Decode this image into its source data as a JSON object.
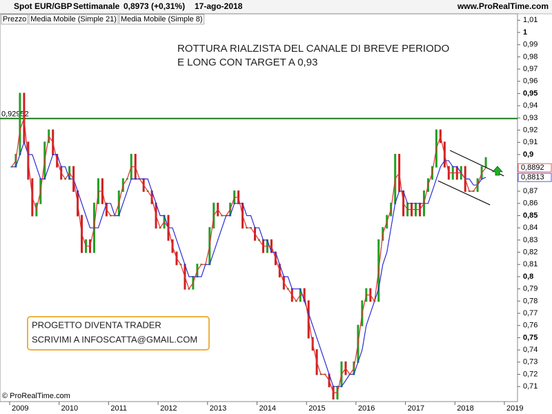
{
  "chart_data": {
    "type": "price_bars",
    "title": "Spot EUR/GBP",
    "timeframe": "Settimanale",
    "last_quote": "0,8973 (+0,31%)",
    "date": "17-ago-2018",
    "source": "www.ProRealTime.com",
    "copyright": "© ProRealTime.com",
    "annotations": [
      "ROTTURA RIALZISTA DEL CANALE DI BREVE PERIODO",
      "E LONG CON TARGET A 0,93"
    ],
    "info_box": [
      "PROGETTO DIVENTA TRADER",
      "SCRIVIMI A INFOSCATTA@GMAIL.COM"
    ],
    "level": {
      "value": 0.92952,
      "label": "0,92952",
      "color": "#1a7a1a"
    },
    "trendlines": [
      {
        "x": [
          2017.9,
          2018.99
        ],
        "y": [
          0.9034,
          0.8825
        ]
      },
      {
        "x": [
          2017.66,
          2018.71
        ],
        "y": [
          0.8785,
          0.8588
        ]
      }
    ],
    "xlim": [
      2008.805,
      2019.265
    ],
    "xticks": [
      2009,
      2010,
      2011,
      2012,
      2013,
      2014,
      2015,
      2016,
      2017,
      2018,
      2019
    ],
    "ylim": [
      0.6977,
      1.0068
    ],
    "yticks": [
      {
        "value": 0.71,
        "label": "0,71"
      },
      {
        "value": 0.72,
        "label": "0,72"
      },
      {
        "value": 0.73,
        "label": "0,73"
      },
      {
        "value": 0.74,
        "label": "0,74"
      },
      {
        "value": 0.75,
        "label": "0,75"
      },
      {
        "value": 0.76,
        "label": "0,76"
      },
      {
        "value": 0.77,
        "label": "0,77"
      },
      {
        "value": 0.78,
        "label": "0,78"
      },
      {
        "value": 0.79,
        "label": "0,79"
      },
      {
        "value": 0.8,
        "label": "0,8"
      },
      {
        "value": 0.81,
        "label": "0,81"
      },
      {
        "value": 0.82,
        "label": "0,82"
      },
      {
        "value": 0.83,
        "label": "0,83"
      },
      {
        "value": 0.84,
        "label": "0,84"
      },
      {
        "value": 0.85,
        "label": "0,85"
      },
      {
        "value": 0.86,
        "label": "0,86"
      },
      {
        "value": 0.87,
        "label": "0,87"
      },
      {
        "value": 0.88,
        "label": "0,88"
      },
      {
        "value": 0.89,
        "label": "0,89"
      },
      {
        "value": 0.9,
        "label": "0,9"
      },
      {
        "value": 0.91,
        "label": "0,91"
      },
      {
        "value": 0.92,
        "label": "0,92"
      },
      {
        "value": 0.93,
        "label": "0,93"
      },
      {
        "value": 0.94,
        "label": "0,94"
      },
      {
        "value": 0.95,
        "label": "0,95"
      },
      {
        "value": 0.96,
        "label": "0,96"
      },
      {
        "value": 0.97,
        "label": "0,97"
      },
      {
        "value": 0.98,
        "label": "0,98"
      },
      {
        "value": 0.99,
        "label": "0,99"
      },
      1,
      {
        "value": 1.01,
        "label": "1,01"
      }
    ],
    "x": [
      2009.042,
      2009.125,
      2009.208,
      2009.292,
      2009.375,
      2009.458,
      2009.542,
      2009.625,
      2009.708,
      2009.792,
      2009.875,
      2009.958,
      2010.042,
      2010.125,
      2010.208,
      2010.292,
      2010.375,
      2010.458,
      2010.542,
      2010.625,
      2010.708,
      2010.792,
      2010.875,
      2010.958,
      2011.042,
      2011.125,
      2011.208,
      2011.292,
      2011.375,
      2011.458,
      2011.542,
      2011.625,
      2011.708,
      2011.792,
      2011.875,
      2011.958,
      2012.042,
      2012.125,
      2012.208,
      2012.292,
      2012.375,
      2012.458,
      2012.542,
      2012.625,
      2012.708,
      2012.792,
      2012.875,
      2012.958,
      2013.042,
      2013.125,
      2013.208,
      2013.292,
      2013.375,
      2013.458,
      2013.542,
      2013.625,
      2013.708,
      2013.792,
      2013.875,
      2013.958,
      2014.042,
      2014.125,
      2014.208,
      2014.292,
      2014.375,
      2014.458,
      2014.542,
      2014.625,
      2014.708,
      2014.792,
      2014.875,
      2014.958,
      2015.042,
      2015.125,
      2015.208,
      2015.292,
      2015.375,
      2015.458,
      2015.542,
      2015.625,
      2015.708,
      2015.792,
      2015.875,
      2015.958,
      2016.042,
      2016.125,
      2016.208,
      2016.292,
      2016.375,
      2016.458,
      2016.542,
      2016.625,
      2016.708,
      2016.792,
      2016.875,
      2016.958,
      2017.042,
      2017.125,
      2017.208,
      2017.292,
      2017.375,
      2017.458,
      2017.542,
      2017.625,
      2017.708,
      2017.792,
      2017.875,
      2017.958,
      2018.042,
      2018.125,
      2018.208,
      2018.292,
      2018.375,
      2018.458,
      2018.542,
      2018.625
    ],
    "series": [
      {
        "name": "Prezzo",
        "kind": "bars",
        "up_color": "#22a022",
        "down_color": "#d02020",
        "name_color": "#000000",
        "values": [
          0.89,
          0.9,
          0.95,
          0.91,
          0.88,
          0.85,
          0.86,
          0.88,
          0.91,
          0.92,
          0.9,
          0.89,
          0.88,
          0.88,
          0.89,
          0.87,
          0.85,
          0.82,
          0.83,
          0.82,
          0.86,
          0.88,
          0.86,
          0.85,
          0.85,
          0.85,
          0.87,
          0.88,
          0.88,
          0.9,
          0.88,
          0.88,
          0.87,
          0.87,
          0.86,
          0.84,
          0.84,
          0.85,
          0.83,
          0.82,
          0.81,
          0.81,
          0.79,
          0.79,
          0.8,
          0.81,
          0.81,
          0.81,
          0.84,
          0.86,
          0.85,
          0.85,
          0.85,
          0.86,
          0.87,
          0.86,
          0.84,
          0.84,
          0.84,
          0.83,
          0.83,
          0.82,
          0.83,
          0.82,
          0.81,
          0.8,
          0.79,
          0.79,
          0.78,
          0.78,
          0.79,
          0.78,
          0.75,
          0.74,
          0.72,
          0.72,
          0.72,
          0.71,
          0.7,
          0.71,
          0.73,
          0.72,
          0.72,
          0.73,
          0.76,
          0.78,
          0.79,
          0.78,
          0.78,
          0.83,
          0.84,
          0.85,
          0.86,
          0.9,
          0.87,
          0.85,
          0.86,
          0.85,
          0.86,
          0.85,
          0.87,
          0.88,
          0.89,
          0.92,
          0.91,
          0.89,
          0.88,
          0.89,
          0.88,
          0.89,
          0.87,
          0.87,
          0.87,
          0.88,
          0.89,
          0.8973
        ]
      },
      {
        "name": "Media Mobile (Simple 21)",
        "kind": "line",
        "color": "#2b2bd6",
        "last_label": "0,8813",
        "values": [
          0.89,
          0.89,
          0.9,
          0.91,
          0.9,
          0.9,
          0.89,
          0.88,
          0.88,
          0.89,
          0.9,
          0.9,
          0.89,
          0.89,
          0.88,
          0.88,
          0.87,
          0.86,
          0.85,
          0.84,
          0.84,
          0.84,
          0.85,
          0.86,
          0.86,
          0.85,
          0.85,
          0.86,
          0.87,
          0.88,
          0.88,
          0.88,
          0.88,
          0.88,
          0.87,
          0.86,
          0.85,
          0.85,
          0.84,
          0.84,
          0.83,
          0.82,
          0.81,
          0.8,
          0.8,
          0.8,
          0.8,
          0.81,
          0.81,
          0.82,
          0.83,
          0.84,
          0.85,
          0.85,
          0.86,
          0.86,
          0.86,
          0.85,
          0.85,
          0.84,
          0.84,
          0.83,
          0.83,
          0.82,
          0.82,
          0.81,
          0.8,
          0.8,
          0.79,
          0.79,
          0.79,
          0.78,
          0.77,
          0.76,
          0.75,
          0.74,
          0.73,
          0.72,
          0.71,
          0.71,
          0.71,
          0.715,
          0.72,
          0.72,
          0.73,
          0.74,
          0.76,
          0.77,
          0.78,
          0.79,
          0.81,
          0.82,
          0.84,
          0.86,
          0.87,
          0.87,
          0.86,
          0.86,
          0.86,
          0.86,
          0.86,
          0.86,
          0.87,
          0.88,
          0.89,
          0.895,
          0.895,
          0.89,
          0.89,
          0.885,
          0.88,
          0.88,
          0.875,
          0.875,
          0.88,
          0.8813
        ]
      },
      {
        "name": "Media Mobile (Simple 8)",
        "kind": "line",
        "color": "#e03030",
        "last_label": "0,8892",
        "values": [
          0.89,
          0.895,
          0.92,
          0.93,
          0.895,
          0.865,
          0.855,
          0.87,
          0.895,
          0.915,
          0.91,
          0.895,
          0.885,
          0.88,
          0.885,
          0.88,
          0.86,
          0.835,
          0.825,
          0.825,
          0.84,
          0.87,
          0.87,
          0.855,
          0.85,
          0.85,
          0.86,
          0.875,
          0.88,
          0.89,
          0.89,
          0.88,
          0.875,
          0.87,
          0.865,
          0.85,
          0.84,
          0.845,
          0.84,
          0.825,
          0.815,
          0.81,
          0.8,
          0.79,
          0.795,
          0.805,
          0.81,
          0.81,
          0.825,
          0.85,
          0.855,
          0.85,
          0.85,
          0.855,
          0.865,
          0.865,
          0.85,
          0.84,
          0.84,
          0.835,
          0.83,
          0.825,
          0.825,
          0.825,
          0.815,
          0.805,
          0.795,
          0.79,
          0.785,
          0.78,
          0.785,
          0.785,
          0.765,
          0.745,
          0.73,
          0.72,
          0.72,
          0.715,
          0.705,
          0.705,
          0.72,
          0.725,
          0.72,
          0.725,
          0.745,
          0.77,
          0.785,
          0.785,
          0.78,
          0.805,
          0.835,
          0.845,
          0.855,
          0.88,
          0.885,
          0.86,
          0.855,
          0.855,
          0.855,
          0.855,
          0.86,
          0.875,
          0.885,
          0.905,
          0.915,
          0.9,
          0.885,
          0.885,
          0.885,
          0.885,
          0.88,
          0.87,
          0.87,
          0.875,
          0.885,
          0.8892
        ]
      }
    ]
  }
}
